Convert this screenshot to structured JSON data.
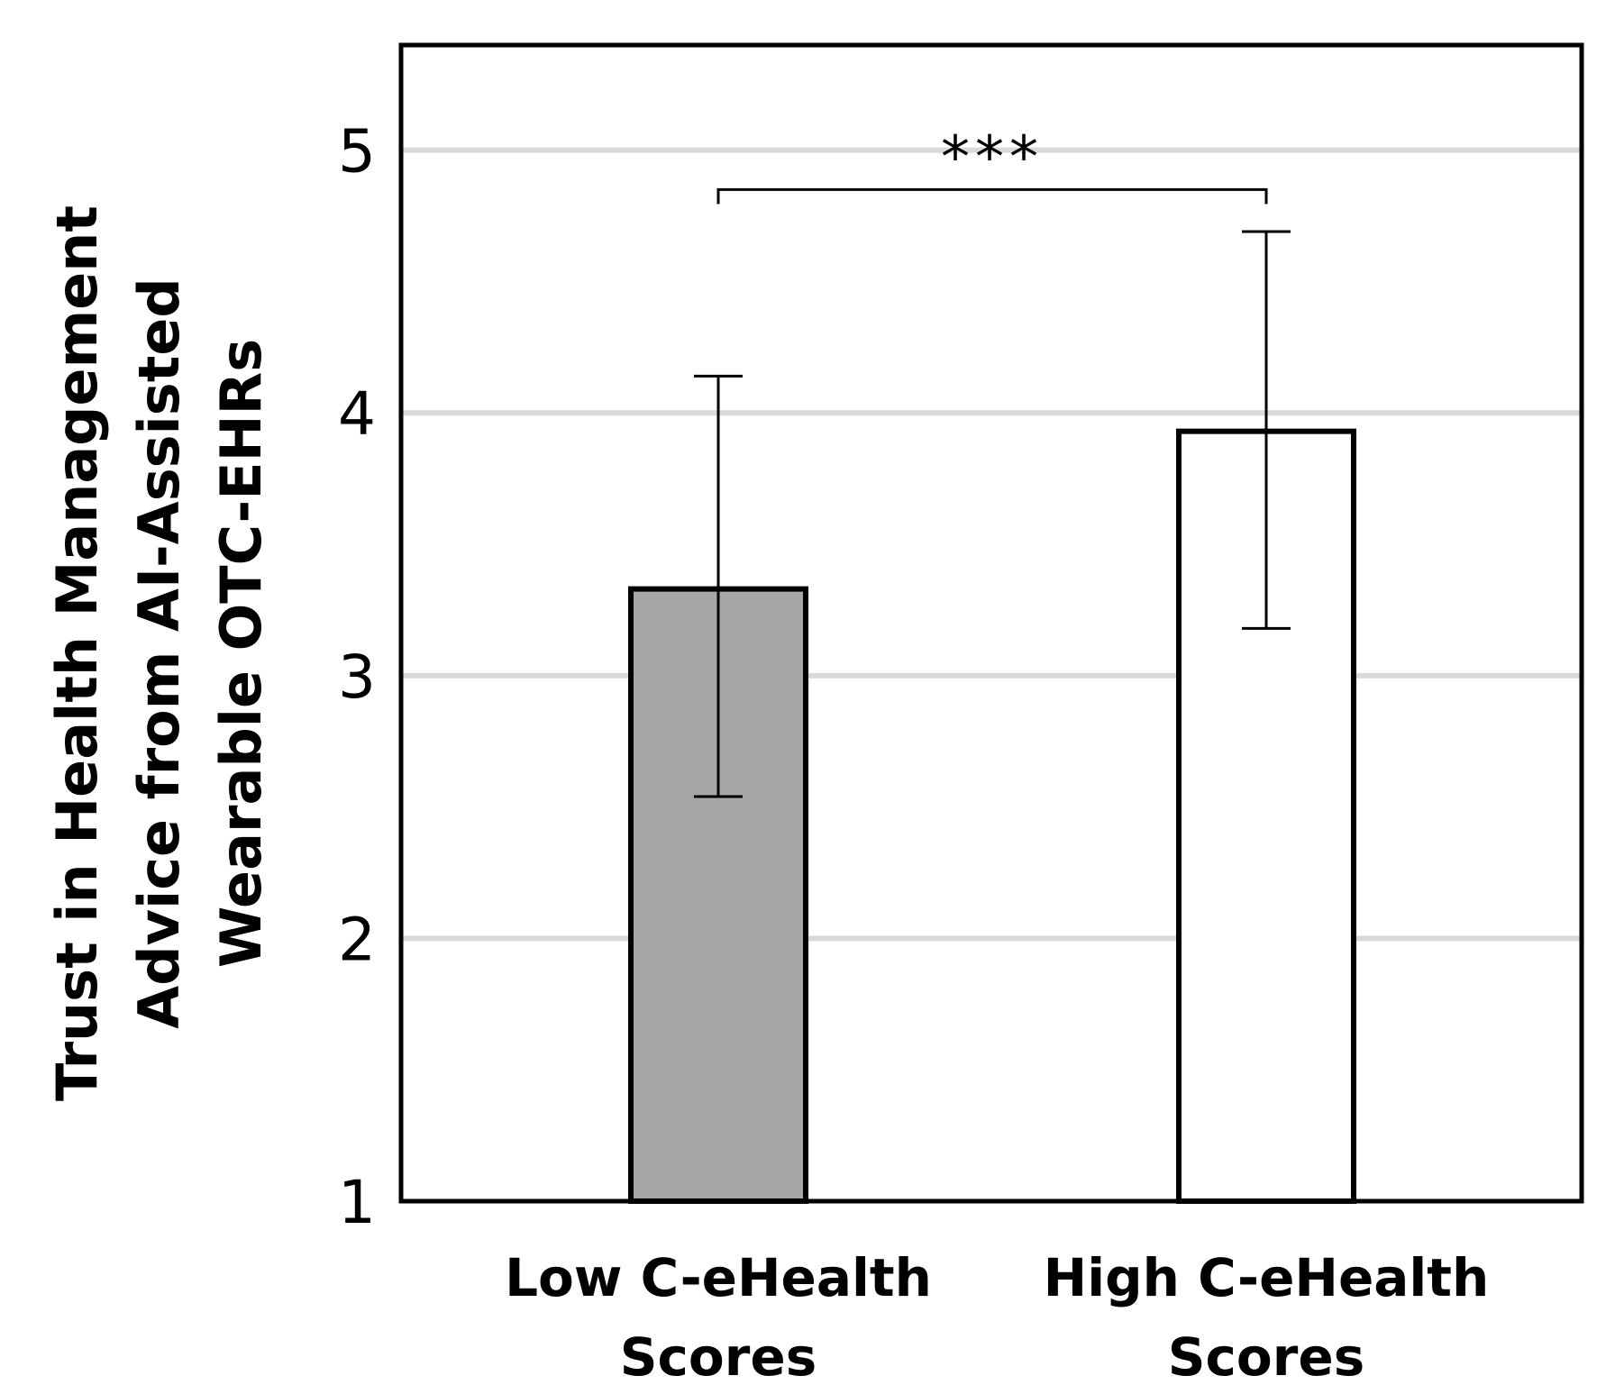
{
  "chart_data": {
    "type": "bar",
    "title": "",
    "ylabel_lines": [
      "Trust in Health Management",
      "Advice from AI-Assisted",
      "Wearable  OTC-EHRs"
    ],
    "xlabel": "",
    "categories": [
      {
        "lines": [
          "Low C-eHealth",
          "Scores"
        ]
      },
      {
        "lines": [
          "High C-eHealth",
          "Scores"
        ]
      }
    ],
    "values": [
      3.33,
      3.93
    ],
    "error_low": [
      2.54,
      3.18
    ],
    "error_high": [
      4.14,
      4.69
    ],
    "bar_colors": [
      "#a6a6a6",
      "#ffffff"
    ],
    "ylim": [
      1,
      5.4
    ],
    "yticks": [
      1,
      2,
      3,
      4,
      5
    ],
    "gridlines": [
      2,
      3,
      4,
      5
    ],
    "grid": true,
    "significance": {
      "between": [
        0,
        1
      ],
      "label": "***",
      "y": 4.85
    }
  }
}
